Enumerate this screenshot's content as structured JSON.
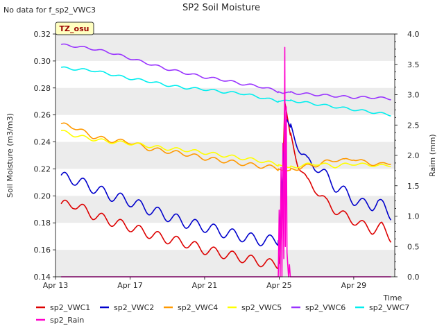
{
  "chart_data": {
    "type": "line",
    "title": "SP2 Soil Moisture",
    "no_data_note": "No data for f_sp2_VWC3",
    "site_badge": "TZ_osu",
    "xlabel": "Time",
    "ylabel": "Soil Moisture (m3/m3)",
    "y2label": "Raim (mm)",
    "x_start": "2023-04-13",
    "x_end": "2023-04-30",
    "xlim_days": [
      0,
      18.2
    ],
    "ylim": [
      0.14,
      0.32
    ],
    "y2lim": [
      0.0,
      4.0
    ],
    "x_ticks": [
      {
        "day": 0,
        "label": "Apr 13"
      },
      {
        "day": 4,
        "label": "Apr 17"
      },
      {
        "day": 8,
        "label": "Apr 21"
      },
      {
        "day": 12,
        "label": "Apr 25"
      },
      {
        "day": 16,
        "label": "Apr 29"
      }
    ],
    "y_ticks": [
      "0.14",
      "0.16",
      "0.18",
      "0.20",
      "0.22",
      "0.24",
      "0.26",
      "0.28",
      "0.30",
      "0.32"
    ],
    "y2_ticks": [
      "0.0",
      "0.5",
      "1.0",
      "1.5",
      "2.0",
      "2.5",
      "3.0",
      "3.5",
      "4.0"
    ],
    "grid": "horizontal bands",
    "legend_position": "bottom",
    "series": [
      {
        "name": "sp2_VWC1",
        "color": "#dd0000",
        "axis": "left",
        "diurnal": 0.0035,
        "points": [
          [
            0.3,
            0.193
          ],
          [
            1,
            0.194
          ],
          [
            2,
            0.186
          ],
          [
            3,
            0.181
          ],
          [
            4,
            0.177
          ],
          [
            5,
            0.172
          ],
          [
            6,
            0.168
          ],
          [
            7,
            0.165
          ],
          [
            8,
            0.16
          ],
          [
            9,
            0.157
          ],
          [
            10,
            0.154
          ],
          [
            11,
            0.151
          ],
          [
            11.9,
            0.149
          ],
          [
            12.0,
            0.15
          ],
          [
            12.15,
            0.19
          ],
          [
            12.3,
            0.27
          ],
          [
            12.6,
            0.245
          ],
          [
            13,
            0.225
          ],
          [
            13.5,
            0.21
          ],
          [
            14,
            0.205
          ],
          [
            14.5,
            0.195
          ],
          [
            15,
            0.19
          ],
          [
            15.5,
            0.185
          ],
          [
            16,
            0.182
          ],
          [
            16.5,
            0.178
          ],
          [
            17,
            0.175
          ],
          [
            17.5,
            0.177
          ],
          [
            18,
            0.169
          ]
        ]
      },
      {
        "name": "sp2_VWC2",
        "color": "#0000cc",
        "axis": "left",
        "diurnal": 0.004,
        "points": [
          [
            0.3,
            0.214
          ],
          [
            1,
            0.212
          ],
          [
            2,
            0.206
          ],
          [
            3,
            0.2
          ],
          [
            4,
            0.196
          ],
          [
            5,
            0.19
          ],
          [
            6,
            0.185
          ],
          [
            7,
            0.18
          ],
          [
            8,
            0.177
          ],
          [
            9,
            0.173
          ],
          [
            10,
            0.17
          ],
          [
            11,
            0.167
          ],
          [
            12.0,
            0.167
          ],
          [
            12.2,
            0.22
          ],
          [
            12.4,
            0.257
          ],
          [
            12.8,
            0.245
          ],
          [
            13.2,
            0.232
          ],
          [
            13.5,
            0.225
          ],
          [
            14,
            0.222
          ],
          [
            14.5,
            0.215
          ],
          [
            15,
            0.207
          ],
          [
            15.5,
            0.203
          ],
          [
            16,
            0.197
          ],
          [
            16.5,
            0.194
          ],
          [
            17,
            0.193
          ],
          [
            17.3,
            0.195
          ],
          [
            17.6,
            0.192
          ],
          [
            18,
            0.186
          ]
        ]
      },
      {
        "name": "sp2_VWC4",
        "color": "#ff9900",
        "axis": "left",
        "diurnal": 0.0015,
        "points": [
          [
            0.3,
            0.253
          ],
          [
            1,
            0.251
          ],
          [
            2,
            0.244
          ],
          [
            3,
            0.241
          ],
          [
            4,
            0.24
          ],
          [
            5,
            0.235
          ],
          [
            6,
            0.233
          ],
          [
            7,
            0.231
          ],
          [
            8,
            0.228
          ],
          [
            9,
            0.226
          ],
          [
            10,
            0.224
          ],
          [
            11,
            0.222
          ],
          [
            11.8,
            0.221
          ],
          [
            12.3,
            0.218
          ],
          [
            12.8,
            0.22
          ],
          [
            13.5,
            0.222
          ],
          [
            14,
            0.223
          ],
          [
            14.5,
            0.225
          ],
          [
            15,
            0.227
          ],
          [
            15.5,
            0.226
          ],
          [
            16,
            0.228
          ],
          [
            16.5,
            0.225
          ],
          [
            17,
            0.224
          ],
          [
            17.5,
            0.223
          ],
          [
            18,
            0.225
          ]
        ]
      },
      {
        "name": "sp2_VWC5",
        "color": "#ffff00",
        "axis": "left",
        "diurnal": 0.0012,
        "points": [
          [
            0.3,
            0.248
          ],
          [
            1,
            0.245
          ],
          [
            2,
            0.242
          ],
          [
            3,
            0.24
          ],
          [
            4,
            0.239
          ],
          [
            5,
            0.237
          ],
          [
            6,
            0.235
          ],
          [
            7,
            0.234
          ],
          [
            8,
            0.232
          ],
          [
            9,
            0.23
          ],
          [
            10,
            0.228
          ],
          [
            11,
            0.226
          ],
          [
            12,
            0.223
          ],
          [
            12.5,
            0.221
          ],
          [
            13,
            0.222
          ],
          [
            13.5,
            0.223
          ],
          [
            14,
            0.224
          ],
          [
            14.5,
            0.223
          ],
          [
            15,
            0.222
          ],
          [
            15.5,
            0.223
          ],
          [
            16,
            0.224
          ],
          [
            16.5,
            0.223
          ],
          [
            17,
            0.223
          ],
          [
            17.5,
            0.222
          ],
          [
            18,
            0.223
          ]
        ]
      },
      {
        "name": "sp2_VWC6",
        "color": "#9933ff",
        "axis": "left",
        "diurnal": 0.0008,
        "points": [
          [
            0.3,
            0.312
          ],
          [
            1,
            0.311
          ],
          [
            2,
            0.309
          ],
          [
            3,
            0.306
          ],
          [
            4,
            0.302
          ],
          [
            5,
            0.298
          ],
          [
            6,
            0.294
          ],
          [
            7,
            0.291
          ],
          [
            8,
            0.288
          ],
          [
            9,
            0.286
          ],
          [
            10,
            0.283
          ],
          [
            11,
            0.281
          ],
          [
            11.8,
            0.278
          ],
          [
            12.2,
            0.276
          ],
          [
            12.5,
            0.277
          ],
          [
            13,
            0.276
          ],
          [
            14,
            0.275
          ],
          [
            15,
            0.274
          ],
          [
            16,
            0.273
          ],
          [
            17,
            0.273
          ],
          [
            18,
            0.272
          ]
        ]
      },
      {
        "name": "sp2_VWC7",
        "color": "#00eeee",
        "axis": "left",
        "diurnal": 0.0008,
        "points": [
          [
            0.3,
            0.295
          ],
          [
            1,
            0.294
          ],
          [
            2,
            0.293
          ],
          [
            3,
            0.29
          ],
          [
            4,
            0.287
          ],
          [
            5,
            0.285
          ],
          [
            6,
            0.282
          ],
          [
            7,
            0.28
          ],
          [
            8,
            0.279
          ],
          [
            9,
            0.277
          ],
          [
            10,
            0.276
          ],
          [
            11,
            0.273
          ],
          [
            12,
            0.27
          ],
          [
            12.3,
            0.271
          ],
          [
            13,
            0.27
          ],
          [
            13.5,
            0.269
          ],
          [
            14,
            0.268
          ],
          [
            15,
            0.266
          ],
          [
            16,
            0.264
          ],
          [
            17,
            0.262
          ],
          [
            17.5,
            0.261
          ],
          [
            18,
            0.26
          ]
        ]
      },
      {
        "name": "sp2_Rain",
        "color": "#ff00cc",
        "axis": "right",
        "diurnal": 0,
        "points": [
          [
            0.3,
            0
          ],
          [
            11.95,
            0
          ],
          [
            12.0,
            1.1
          ],
          [
            12.05,
            0
          ],
          [
            12.1,
            1.8
          ],
          [
            12.15,
            0
          ],
          [
            12.2,
            2.2
          ],
          [
            12.25,
            0.3
          ],
          [
            12.3,
            3.78
          ],
          [
            12.33,
            0.5
          ],
          [
            12.38,
            2.8
          ],
          [
            12.42,
            0.4
          ],
          [
            12.46,
            0.2
          ],
          [
            12.5,
            0
          ],
          [
            12.55,
            0.2
          ],
          [
            12.6,
            0
          ],
          [
            18,
            0
          ]
        ]
      }
    ]
  }
}
